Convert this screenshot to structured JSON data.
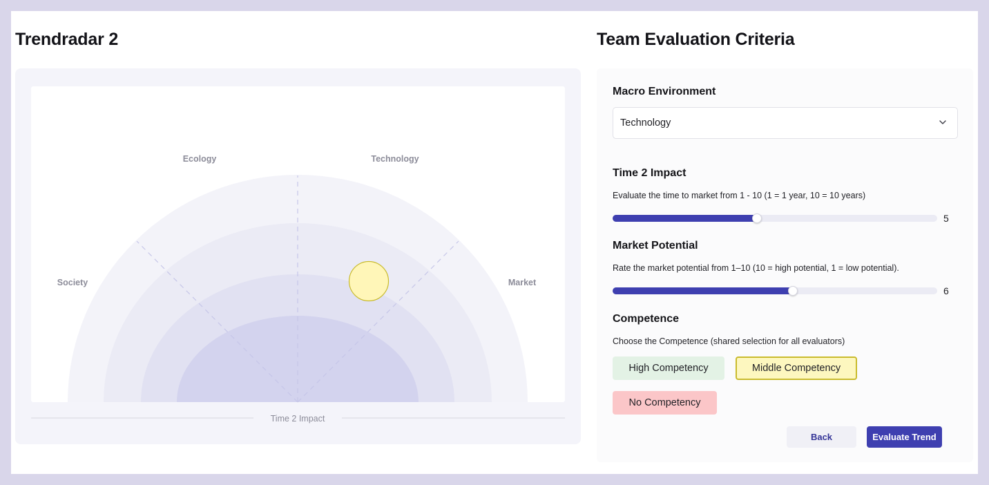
{
  "radar": {
    "title": "Trendradar 2",
    "sectors": [
      "Society",
      "Ecology",
      "Technology",
      "Market"
    ],
    "axis_label": "Time 2 Impact",
    "rings": 4,
    "trend_marker": {
      "sector": "Technology",
      "color": "#fff6b8"
    }
  },
  "criteria": {
    "title": "Team Evaluation Criteria",
    "macro_label": "Macro Environment",
    "macro_value": "Technology",
    "time_label": "Time 2 Impact",
    "time_desc": "Evaluate the time to market from 1 - 10 (1 = 1 year, 10 = 10 years)",
    "time_value": "5",
    "time_fraction": 0.444,
    "market_label": "Market Potential",
    "market_desc": "Rate the market potential from 1–10 (10 = high potential, 1 = low potential).",
    "market_value": "6",
    "market_fraction": 0.555,
    "competence_label": "Competence",
    "competence_desc": "Choose the Competence (shared selection for all evaluators)",
    "competence_options": [
      "High Competency",
      "Middle Competency",
      "No Competency"
    ],
    "competence_selected": "Middle Competency",
    "back_label": "Back",
    "evaluate_label": "Evaluate Trend"
  },
  "colors": {
    "accent": "#3e3fb0",
    "high": "#e3f2e5",
    "middle": "#fdf7bf",
    "none": "#fbc6c8"
  },
  "icons": {
    "select_chevron": "chevron-down-icon"
  }
}
